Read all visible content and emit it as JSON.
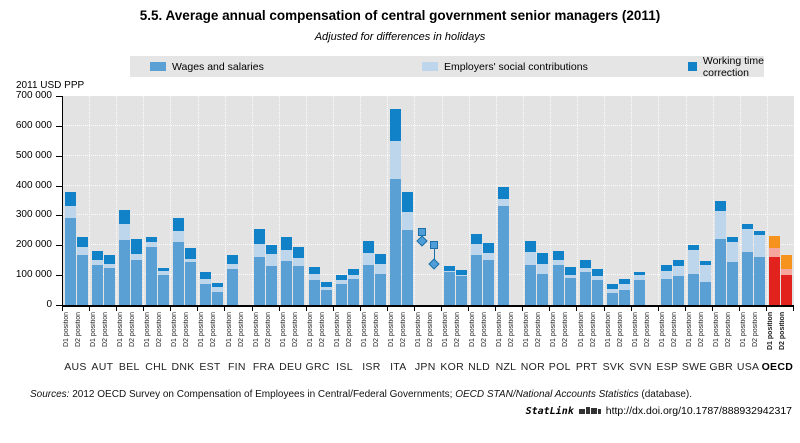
{
  "title": "5.5.  Average annual compensation of central government senior managers (2011)",
  "subtitle": "Adjusted for differences in holidays",
  "y_axis_unit": "2011 USD PPP",
  "legend": [
    {
      "label": "Wages and salaries",
      "color": "#5ba0d4"
    },
    {
      "label": "Employers' social contributions",
      "color": "#bdd6ec"
    },
    {
      "label": "Working time correction",
      "color": "#1181c8"
    }
  ],
  "footer": {
    "sources_label": "Sources:",
    "sources_parts": [
      "2012 OECD Survey on Compensation of Employees in Central/Federal Governments; ",
      "OECD STAN/National Accounts Statistics",
      " (database)."
    ],
    "statlink_label": "StatLink",
    "statlink_url": "http://dx.doi.org/10.1787/888932942317"
  },
  "chart_data": {
    "type": "bar",
    "stacked": true,
    "title": "5.5. Average annual compensation of central government senior managers (2011)",
    "subtitle": "Adjusted for differences in holidays",
    "ylabel": "2011 USD PPP",
    "ylim": [
      0,
      700000
    ],
    "ytick_step": 100000,
    "yticks_top_down": [
      "700 000",
      "600 000",
      "500 000",
      "400 000",
      "300 000",
      "200 000",
      "100 000",
      "0"
    ],
    "grid": "white dotted on gray panel",
    "legend_position": "top band",
    "series_names": [
      "Wages and salaries",
      "Employers' social contributions",
      "Working time correction"
    ],
    "series_keys": [
      "wages",
      "social",
      "worktime"
    ],
    "bar_labels": [
      "D1 position",
      "D2 position"
    ],
    "colors": {
      "default": [
        "#5ba0d4",
        "#bdd6ec",
        "#1181c8"
      ],
      "oecd": [
        "#e2231d",
        "#f5a79e",
        "#f6921e"
      ]
    },
    "note": "values in 2011 USD PPP; stacks ordered wages, employers social contributions, working time correction; JPN shown as square/diamond markers only",
    "countries": [
      {
        "code": "AUS",
        "d1": [
          293000,
          40000,
          45000
        ],
        "d2": [
          168000,
          27000,
          33000
        ]
      },
      {
        "code": "AUT",
        "d1": [
          135000,
          15000,
          30000
        ],
        "d2": [
          125000,
          12000,
          30000
        ]
      },
      {
        "code": "BEL",
        "d1": [
          218000,
          55000,
          45000
        ],
        "d2": [
          150000,
          20000,
          50000
        ]
      },
      {
        "code": "CHL",
        "d1": [
          195000,
          16000,
          16000
        ],
        "d2": [
          100000,
          13000,
          12000
        ]
      },
      {
        "code": "DNK",
        "d1": [
          211000,
          38000,
          41000
        ],
        "d2": [
          143000,
          11000,
          36000
        ]
      },
      {
        "code": "EST",
        "d1": [
          70000,
          16000,
          24000
        ],
        "d2": [
          45000,
          14000,
          16000
        ]
      },
      {
        "code": "FIN",
        "d1": [
          120000,
          16000,
          30000
        ],
        "d2": null
      },
      {
        "code": "FRA",
        "d1": [
          162000,
          42000,
          52000
        ],
        "d2": [
          132000,
          38000,
          32000
        ]
      },
      {
        "code": "DEU",
        "d1": [
          147000,
          37000,
          43000
        ],
        "d2": [
          132000,
          24000,
          40000
        ]
      },
      {
        "code": "GRC",
        "d1": [
          85000,
          18000,
          23000
        ],
        "d2": [
          51000,
          11000,
          15000
        ]
      },
      {
        "code": "ISL",
        "d1": [
          71000,
          12000,
          17000
        ],
        "d2": [
          88000,
          12000,
          19000
        ]
      },
      {
        "code": "ISR",
        "d1": [
          133000,
          40000,
          41000
        ],
        "d2": [
          105000,
          34000,
          31000
        ]
      },
      {
        "code": "ITA",
        "d1": [
          422000,
          126000,
          108000
        ],
        "d2": [
          252000,
          58000,
          68000
        ]
      },
      {
        "code": "JPN",
        "d1": null,
        "d2": null,
        "markers": {
          "d1": {
            "square": 245000,
            "diamond": 214000
          },
          "d2": {
            "square": 201000,
            "diamond": 136000
          }
        }
      },
      {
        "code": "KOR",
        "d1": [
          110000,
          3000,
          19000
        ],
        "d2": [
          97000,
          3000,
          17000
        ]
      },
      {
        "code": "NLD",
        "d1": [
          166000,
          38000,
          34000
        ],
        "d2": [
          151000,
          22000,
          34000
        ]
      },
      {
        "code": "NZL",
        "d1": [
          332000,
          23000,
          40000
        ],
        "d2": null
      },
      {
        "code": "NOR",
        "d1": [
          134000,
          45000,
          36000
        ],
        "d2": [
          105000,
          34000,
          34000
        ]
      },
      {
        "code": "POL",
        "d1": [
          134000,
          17000,
          30000
        ],
        "d2": [
          91000,
          11000,
          26000
        ]
      },
      {
        "code": "PRT",
        "d1": [
          109000,
          16000,
          26000
        ],
        "d2": [
          83000,
          15000,
          22000
        ]
      },
      {
        "code": "SVK",
        "d1": [
          40000,
          14000,
          17000
        ],
        "d2": [
          51000,
          18000,
          19000
        ]
      },
      {
        "code": "SVN",
        "d1": [
          85000,
          15000,
          11000
        ],
        "d2": null
      },
      {
        "code": "ESP",
        "d1": [
          88000,
          27000,
          19000
        ],
        "d2": [
          96000,
          34000,
          21000
        ]
      },
      {
        "code": "SWE",
        "d1": [
          105000,
          80000,
          15000
        ],
        "d2": [
          77000,
          57000,
          15000
        ]
      },
      {
        "code": "GBR",
        "d1": [
          221000,
          94000,
          34000
        ],
        "d2": [
          145000,
          65000,
          17000
        ]
      },
      {
        "code": "USA",
        "d1": [
          176000,
          79000,
          15000
        ],
        "d2": [
          162000,
          74000,
          13000
        ]
      },
      {
        "code": "OECD",
        "d1": [
          160000,
          30000,
          41000
        ],
        "d2": [
          99000,
          20000,
          48000
        ],
        "highlight": true
      }
    ]
  }
}
